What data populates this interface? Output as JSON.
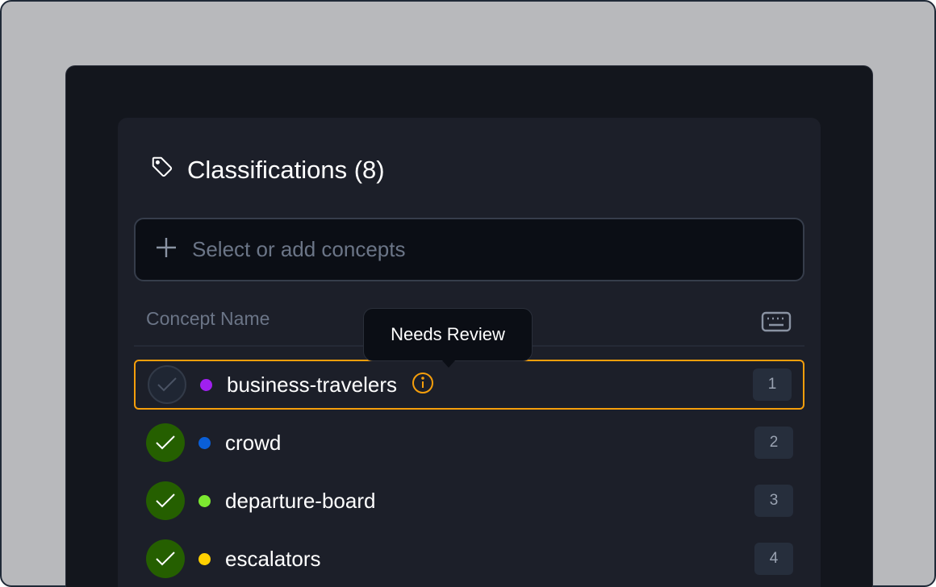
{
  "panel": {
    "title": "Classifications (8)",
    "title_icon": "tag-icon"
  },
  "search": {
    "placeholder": "Select or add concepts",
    "icon": "plus-icon"
  },
  "table": {
    "header": "Concept Name",
    "header_icon": "keyboard-icon"
  },
  "tooltip": {
    "text": "Needs Review"
  },
  "rows": [
    {
      "name": "business-travelers",
      "color": "#a020f0",
      "checked": false,
      "needs_review": true,
      "shortcut": "1"
    },
    {
      "name": "crowd",
      "color": "#0a5fd8",
      "checked": true,
      "needs_review": false,
      "shortcut": "2"
    },
    {
      "name": "departure-board",
      "color": "#7ce830",
      "checked": true,
      "needs_review": false,
      "shortcut": "3"
    },
    {
      "name": "escalators",
      "color": "#ffd000",
      "checked": true,
      "needs_review": false,
      "shortcut": "4"
    }
  ],
  "colors": {
    "selected_border": "#f59e0b",
    "checked_bg": "#255f00"
  }
}
